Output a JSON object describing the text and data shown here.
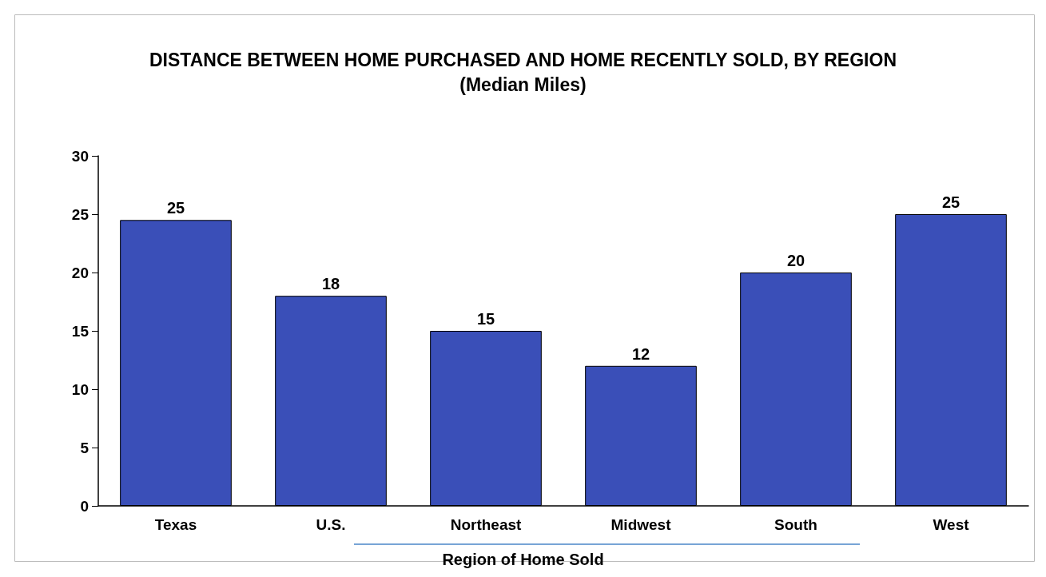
{
  "chart_data": {
    "type": "bar",
    "title": "DISTANCE BETWEEN HOME PURCHASED AND HOME RECENTLY SOLD, BY REGION",
    "subtitle": "(Median Miles)",
    "xlabel": "Region of Home Sold",
    "categories": [
      "Texas",
      "U.S.",
      "Northeast",
      "Midwest",
      "South",
      "West"
    ],
    "values": [
      24.5,
      18,
      15,
      12,
      20,
      25
    ],
    "value_labels": [
      "25",
      "18",
      "15",
      "12",
      "20",
      "25"
    ],
    "color": "#3a4fb8",
    "ylim": [
      0,
      30
    ],
    "yticks": [
      0,
      5,
      10,
      15,
      20,
      25,
      30
    ],
    "grid": false
  }
}
